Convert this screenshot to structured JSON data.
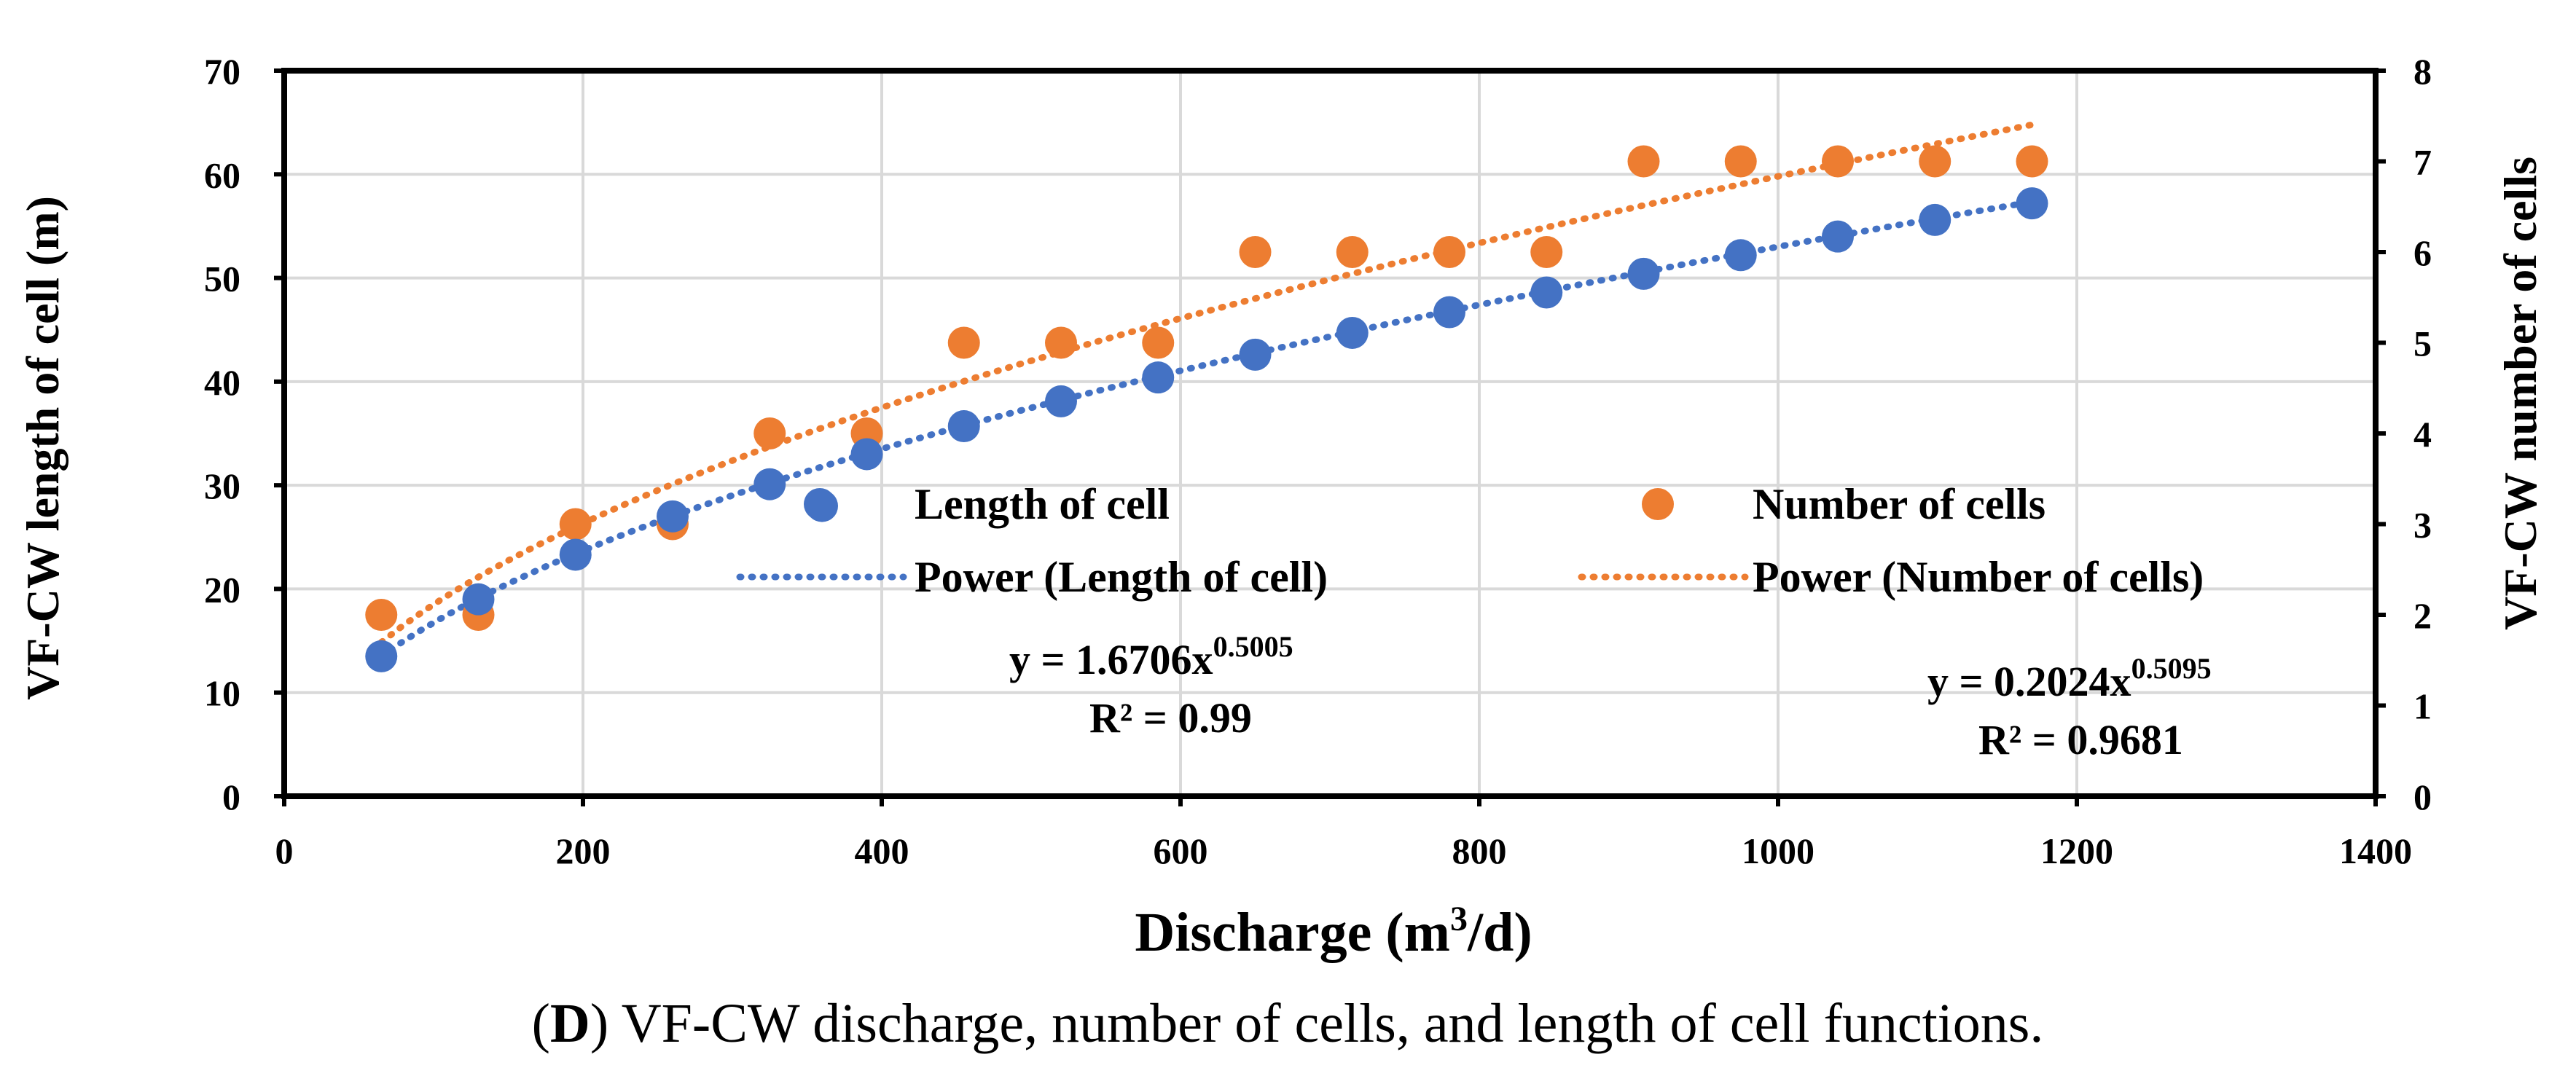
{
  "chart_data": {
    "type": "scatter",
    "x": [
      65,
      130,
      195,
      260,
      325,
      360,
      390,
      455,
      520,
      585,
      650,
      715,
      780,
      845,
      910,
      975,
      1040,
      1105,
      1170
    ],
    "series": [
      {
        "name": "Length of cell",
        "axis": "left",
        "color": "#4472C4",
        "values": [
          13.5,
          19.0,
          23.3,
          27.0,
          30.1,
          28.0,
          33.0,
          35.7,
          38.1,
          40.4,
          42.6,
          44.7,
          46.7,
          48.6,
          50.4,
          52.2,
          54.0,
          55.6,
          57.2
        ]
      },
      {
        "name": "Number of cells",
        "axis": "right",
        "color": "#ED7D31",
        "values": [
          2,
          2,
          3,
          3,
          4,
          null,
          4,
          5,
          5,
          5,
          6,
          6,
          6,
          6,
          7,
          7,
          7,
          7,
          7
        ]
      }
    ],
    "trendlines": [
      {
        "name": "Power (Length of cell)",
        "axis": "left",
        "color": "#4472C4",
        "a": 1.6706,
        "b": 0.5005,
        "x_range": [
          65,
          1170
        ],
        "equation_base": "y = 1.6706x",
        "equation_exp": "0.5005",
        "r2_label": "R² = 0.99"
      },
      {
        "name": "Power (Number of cells)",
        "axis": "right",
        "color": "#ED7D31",
        "a": 0.2024,
        "b": 0.5095,
        "x_range": [
          65,
          1170
        ],
        "equation_base": "y = 0.2024x",
        "equation_exp": "0.5095",
        "r2_label": "R² = 0.9681"
      }
    ],
    "xlabel_main": "Discharge (m",
    "xlabel_sup": "3",
    "xlabel_end": "/d)",
    "ylabel": "VF-CW length of cell (m)",
    "y2label": "VF-CW number of cells",
    "xlim": [
      0,
      1400
    ],
    "ylim": [
      0,
      70
    ],
    "y2lim": [
      0,
      8
    ],
    "xticks": [
      "0",
      "200",
      "400",
      "600",
      "800",
      "1000",
      "1200",
      "1400"
    ],
    "yticks": [
      "0",
      "10",
      "20",
      "30",
      "40",
      "50",
      "60",
      "70"
    ],
    "y2ticks": [
      "0",
      "1",
      "2",
      "3",
      "4",
      "5",
      "6",
      "7",
      "8"
    ],
    "grid": true,
    "legend_position": "center-right"
  },
  "caption": {
    "label": "D",
    "text": " VF-CW discharge, number of cells, and length of cell functions."
  }
}
